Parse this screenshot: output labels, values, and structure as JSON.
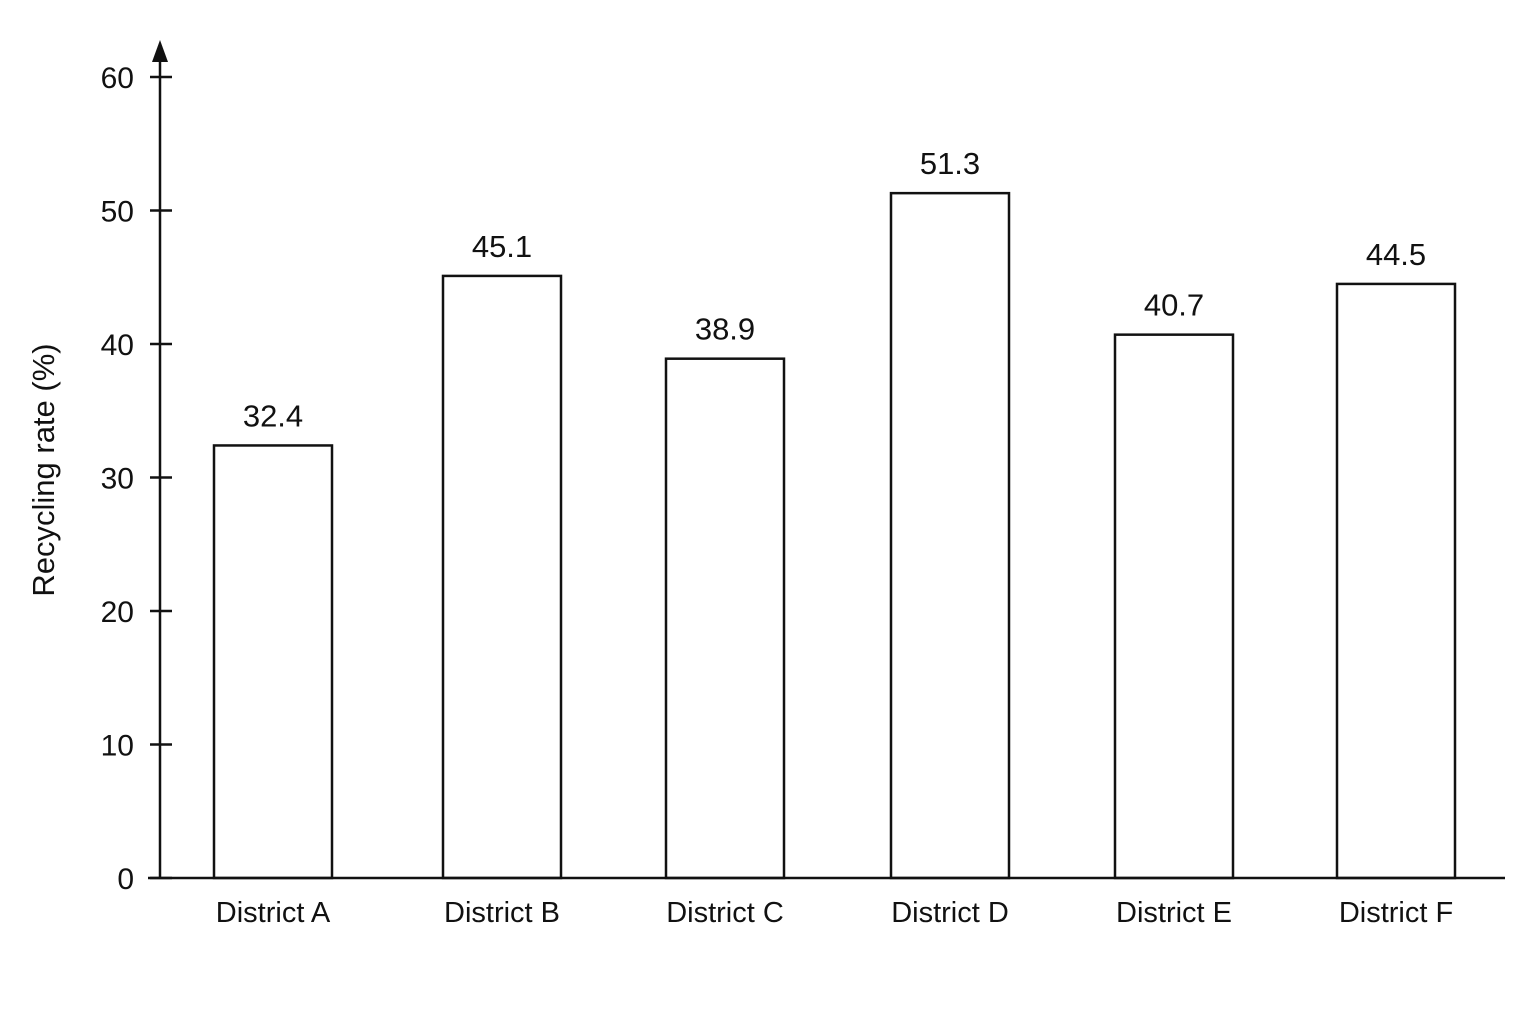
{
  "chart_data": {
    "type": "bar",
    "title": "",
    "xlabel": "",
    "ylabel": "Recycling rate (%)",
    "categories": [
      "District A",
      "District B",
      "District C",
      "District D",
      "District E",
      "District F"
    ],
    "values": [
      32.4,
      45.1,
      38.9,
      51.3,
      40.7,
      44.5
    ],
    "data_labels": [
      "32.4",
      "45.1",
      "38.9",
      "51.3",
      "40.7",
      "44.5"
    ],
    "ylim": [
      0,
      60
    ],
    "yticks": [
      0,
      10,
      20,
      30,
      40,
      50,
      60
    ],
    "ytick_labels": [
      "0",
      "10",
      "20",
      "30",
      "40",
      "50",
      "60"
    ],
    "grid": false,
    "legend": "none",
    "colors": {
      "bar_fill": "#ffffff",
      "bar_stroke": "#111111",
      "axis": "#111111",
      "text": "#111111",
      "background": "#ffffff"
    }
  }
}
